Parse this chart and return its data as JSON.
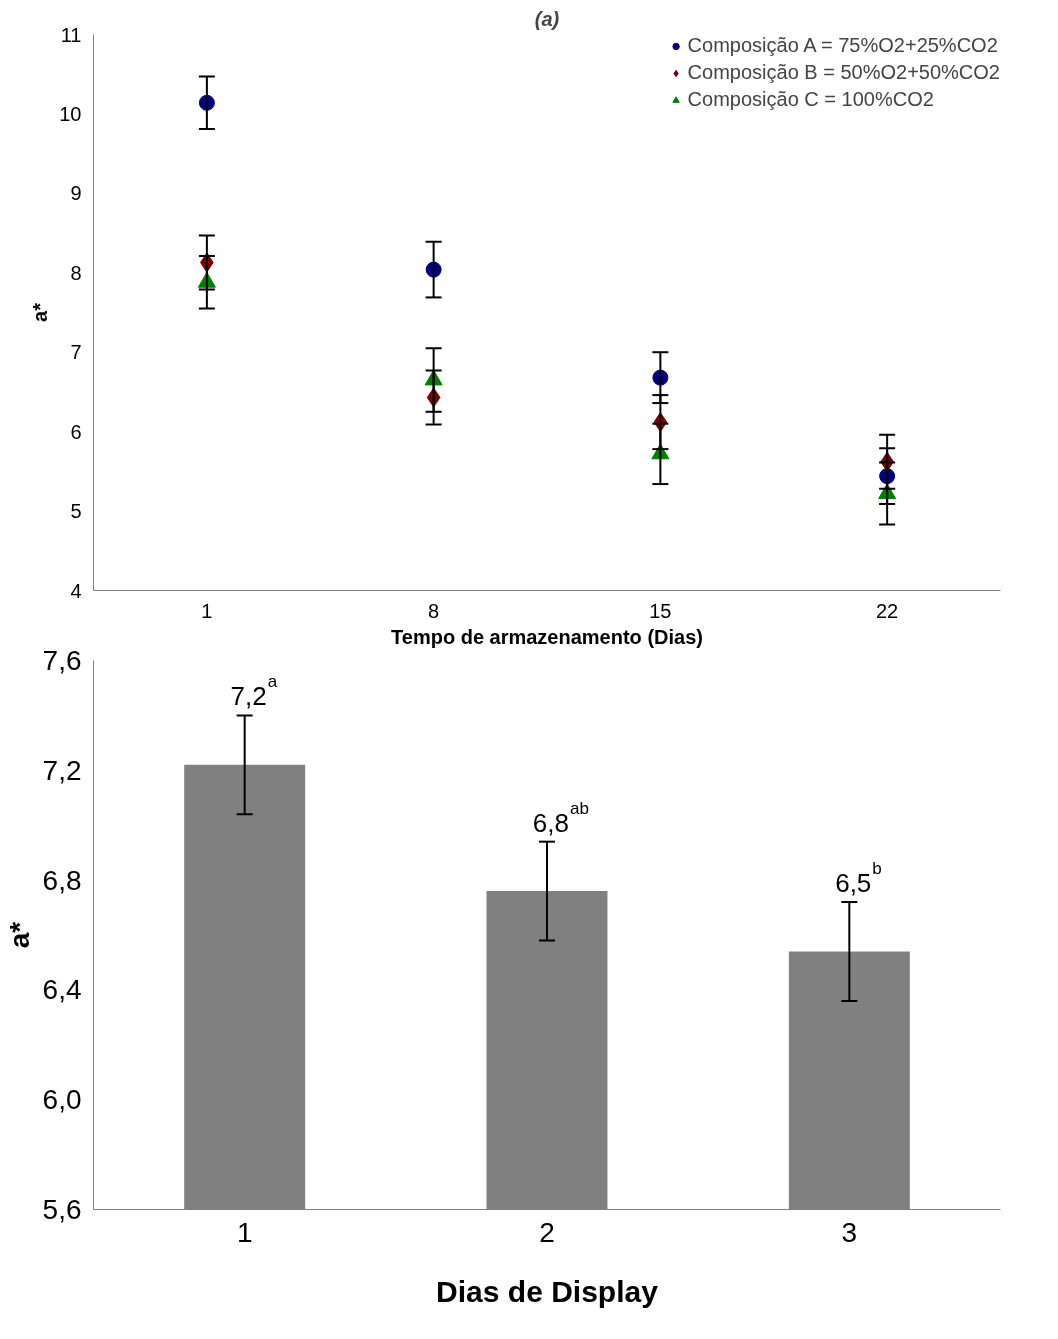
{
  "chart_data": [
    {
      "type": "scatter",
      "title": "(a)",
      "xlabel": "Tempo de armazenamento (Dias)",
      "ylabel": "a*",
      "categories": [
        "1",
        "8",
        "15",
        "22"
      ],
      "ylim": [
        4,
        11
      ],
      "yticks": [
        4,
        5,
        6,
        7,
        8,
        9,
        10,
        11
      ],
      "grid": false,
      "legend": "top right",
      "series": [
        {
          "name": "Composição A = 75%O2+25%CO2",
          "color": "#000080",
          "marker": "circle",
          "values": [
            10.14,
            8.04,
            6.68,
            5.44
          ],
          "errors": [
            0.33,
            0.35,
            0.32,
            0.35
          ]
        },
        {
          "name": "Composição B = 50%O2+50%CO2",
          "color": "#800000",
          "marker": "diamond",
          "values": [
            8.13,
            6.43,
            6.12,
            5.62
          ],
          "errors": [
            0.34,
            0.34,
            0.34,
            0.34
          ]
        },
        {
          "name": "Composição C = 100%CO2",
          "color": "#008000",
          "marker": "triangle",
          "values": [
            7.88,
            6.65,
            5.72,
            5.22
          ],
          "errors": [
            0.33,
            0.4,
            0.38,
            0.39
          ]
        }
      ]
    },
    {
      "type": "bar",
      "xlabel": "Dias de Display",
      "ylabel": "a*",
      "categories": [
        "1",
        "2",
        "3"
      ],
      "color": "#808080",
      "values": [
        7.22,
        6.76,
        6.54
      ],
      "errors": [
        0.18,
        0.18,
        0.18
      ],
      "value_labels": [
        "7,2$^{a}$",
        "6,8$^{ab}$",
        "6,5$^{b}$"
      ],
      "ylim": [
        5.6,
        7.6
      ],
      "yticks": [
        {
          "value": 5.6,
          "label": "5,6"
        },
        {
          "value": 6.0,
          "label": "6,0"
        },
        {
          "value": 6.4,
          "label": "6,4"
        },
        {
          "value": 6.8,
          "label": "6,8"
        },
        {
          "value": 7.2,
          "label": "7,2"
        },
        {
          "value": 7.6,
          "label": "7,6"
        }
      ],
      "grid": false
    }
  ]
}
